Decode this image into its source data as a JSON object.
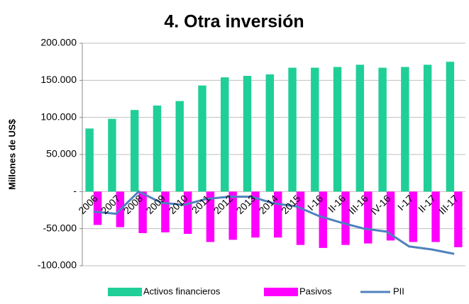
{
  "chart_data": {
    "type": "bar",
    "title": "4. Otra inversión",
    "y_label": "Millones  de US$",
    "categories": [
      "2006",
      "2007",
      "2008",
      "2009",
      "2010",
      "2011",
      "2012",
      "2013",
      "2014",
      "2015",
      "I-16",
      "II-16",
      "III-16",
      "IV-16",
      "I-17",
      "II-17",
      "III-17"
    ],
    "series": [
      {
        "name": "Activos financieros",
        "color": "#1fcf97",
        "kind": "bar",
        "values": [
          85000,
          98000,
          110000,
          116000,
          122000,
          143000,
          154000,
          156000,
          158000,
          167000,
          167000,
          168000,
          171000,
          167000,
          168000,
          171000,
          175000
        ]
      },
      {
        "name": "Pasivos",
        "color": "#ff00ff",
        "kind": "bar",
        "values": [
          -45000,
          -48000,
          -56000,
          -55000,
          -57000,
          -68000,
          -65000,
          -62000,
          -62000,
          -72000,
          -76000,
          -72000,
          -70000,
          -66000,
          -68000,
          -68000,
          -75000
        ]
      },
      {
        "name": "PII",
        "color": "#4f81bd",
        "kind": "line",
        "values": [
          -27000,
          -30000,
          0,
          -15000,
          -18000,
          -10000,
          -7000,
          -7000,
          -16000,
          -20000,
          -33000,
          -42000,
          -50000,
          -54000,
          -74000,
          -78000,
          -84000
        ]
      }
    ],
    "ylim": [
      -100000,
      200000
    ],
    "yticks": [
      {
        "value": -100000,
        "label": "-100.000"
      },
      {
        "value": -50000,
        "label": "-50.000"
      },
      {
        "value": 0,
        "label": "-"
      },
      {
        "value": 50000,
        "label": "50.000"
      },
      {
        "value": 100000,
        "label": "100.000"
      },
      {
        "value": 150000,
        "label": "150.000"
      },
      {
        "value": 200000,
        "label": "200.000"
      }
    ],
    "grid": true,
    "legend": "bottom"
  }
}
